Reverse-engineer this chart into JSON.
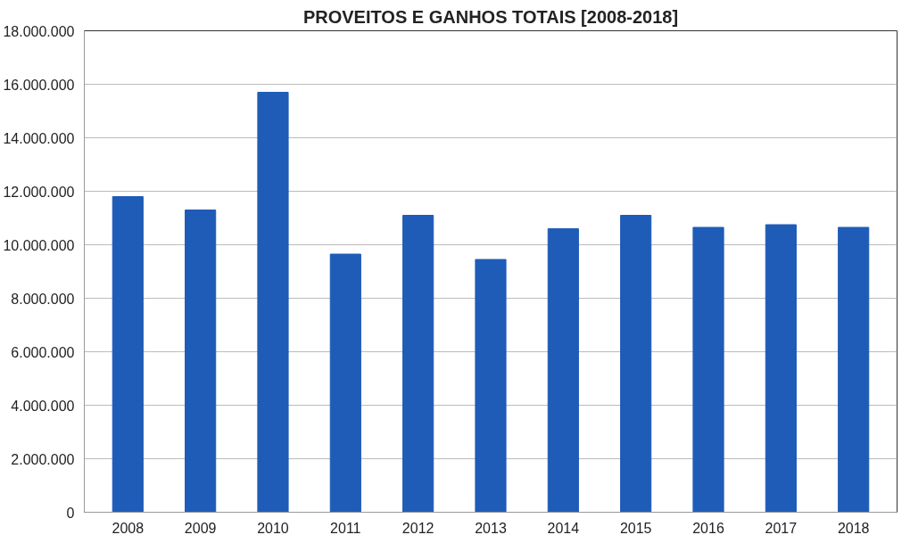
{
  "chart_data": {
    "type": "bar",
    "title": "PROVEITOS E GANHOS TOTAIS [2008-2018]",
    "categories": [
      "2008",
      "2009",
      "2010",
      "2011",
      "2012",
      "2013",
      "2014",
      "2015",
      "2016",
      "2017",
      "2018"
    ],
    "values": [
      11800000,
      11300000,
      15700000,
      9650000,
      11100000,
      9450000,
      10600000,
      11100000,
      10650000,
      10750000,
      10650000
    ],
    "color": "#1f5cb8",
    "ylim": [
      0,
      18000000
    ],
    "yticks": [
      {
        "value": 0,
        "label": "0"
      },
      {
        "value": 2000000,
        "label": "2.000.000"
      },
      {
        "value": 4000000,
        "label": "4.000.000"
      },
      {
        "value": 6000000,
        "label": "6.000.000"
      },
      {
        "value": 8000000,
        "label": "8.000.000"
      },
      {
        "value": 10000000,
        "label": "10.000.000"
      },
      {
        "value": 12000000,
        "label": "12.000.000"
      },
      {
        "value": 14000000,
        "label": "14.000.000"
      },
      {
        "value": 16000000,
        "label": "16.000.000"
      },
      {
        "value": 18000000,
        "label": "18.000.000"
      }
    ],
    "grid": "y"
  }
}
